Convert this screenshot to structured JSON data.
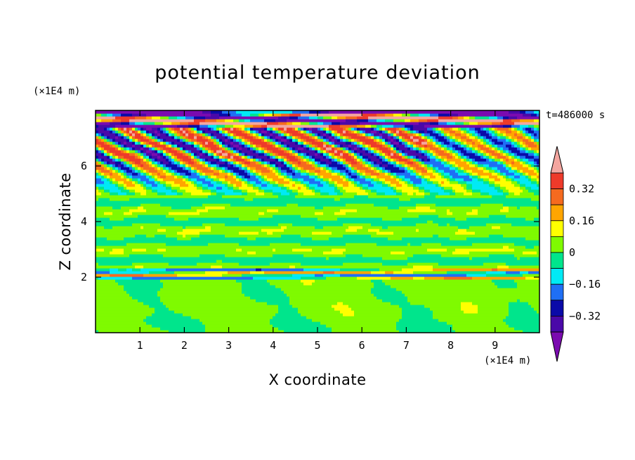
{
  "chart_data": {
    "type": "heatmap",
    "title": "potential temperature deviation",
    "xlabel": "X coordinate",
    "ylabel": "Z coordinate",
    "x_unit": "(×1E4 m)",
    "y_unit": "(×1E4 m)",
    "time_label": "t=486000 s",
    "xlim": [
      0,
      10
    ],
    "ylim": [
      0,
      8
    ],
    "x_ticks": [
      1,
      2,
      3,
      4,
      5,
      6,
      7,
      8,
      9
    ],
    "y_ticks": [
      2,
      4,
      6
    ],
    "colorbar": {
      "tick_labels": [
        "0.32",
        "0.16",
        "0",
        "−0.16",
        "−0.32"
      ],
      "tick_values": [
        0.32,
        0.16,
        0,
        -0.16,
        -0.32
      ],
      "bins": [
        {
          "upper": "> 0.40",
          "color": "#f4a6a0"
        },
        {
          "upper": "0.40",
          "color": "#ee3a2a"
        },
        {
          "upper": "0.32",
          "color": "#f56a1f"
        },
        {
          "upper": "0.24",
          "color": "#ffa500"
        },
        {
          "upper": "0.16",
          "color": "#ffff00"
        },
        {
          "upper": "0.08",
          "color": "#7ffa00"
        },
        {
          "upper": "0",
          "color": "#00e58c"
        },
        {
          "upper": "-0.08",
          "color": "#00eaf5"
        },
        {
          "upper": "-0.16",
          "color": "#1f6ff5"
        },
        {
          "upper": "-0.24",
          "color": "#0a0aa8"
        },
        {
          "upper": "-0.32",
          "color": "#4a09a8"
        },
        {
          "upper": "< -0.40",
          "color": "#7b0bb0"
        }
      ]
    },
    "field_regions": [
      {
        "z_range": [
          0,
          1.95
        ],
        "description": "mostly light green (0 to 0.08) with teal (-0.08 to 0) patches"
      },
      {
        "z_range": [
          2.0,
          2.3
        ],
        "description": "thin inversion band with red/blue streaks"
      },
      {
        "z_range": [
          2.3,
          5.0
        ],
        "description": "horizontally layered light green and teal bands"
      },
      {
        "z_range": [
          5.0,
          7.4
        ],
        "description": "tilted wave trains with full color range"
      },
      {
        "z_range": [
          7.4,
          8.0
        ],
        "description": "purple and pink damping layer at top"
      }
    ]
  }
}
